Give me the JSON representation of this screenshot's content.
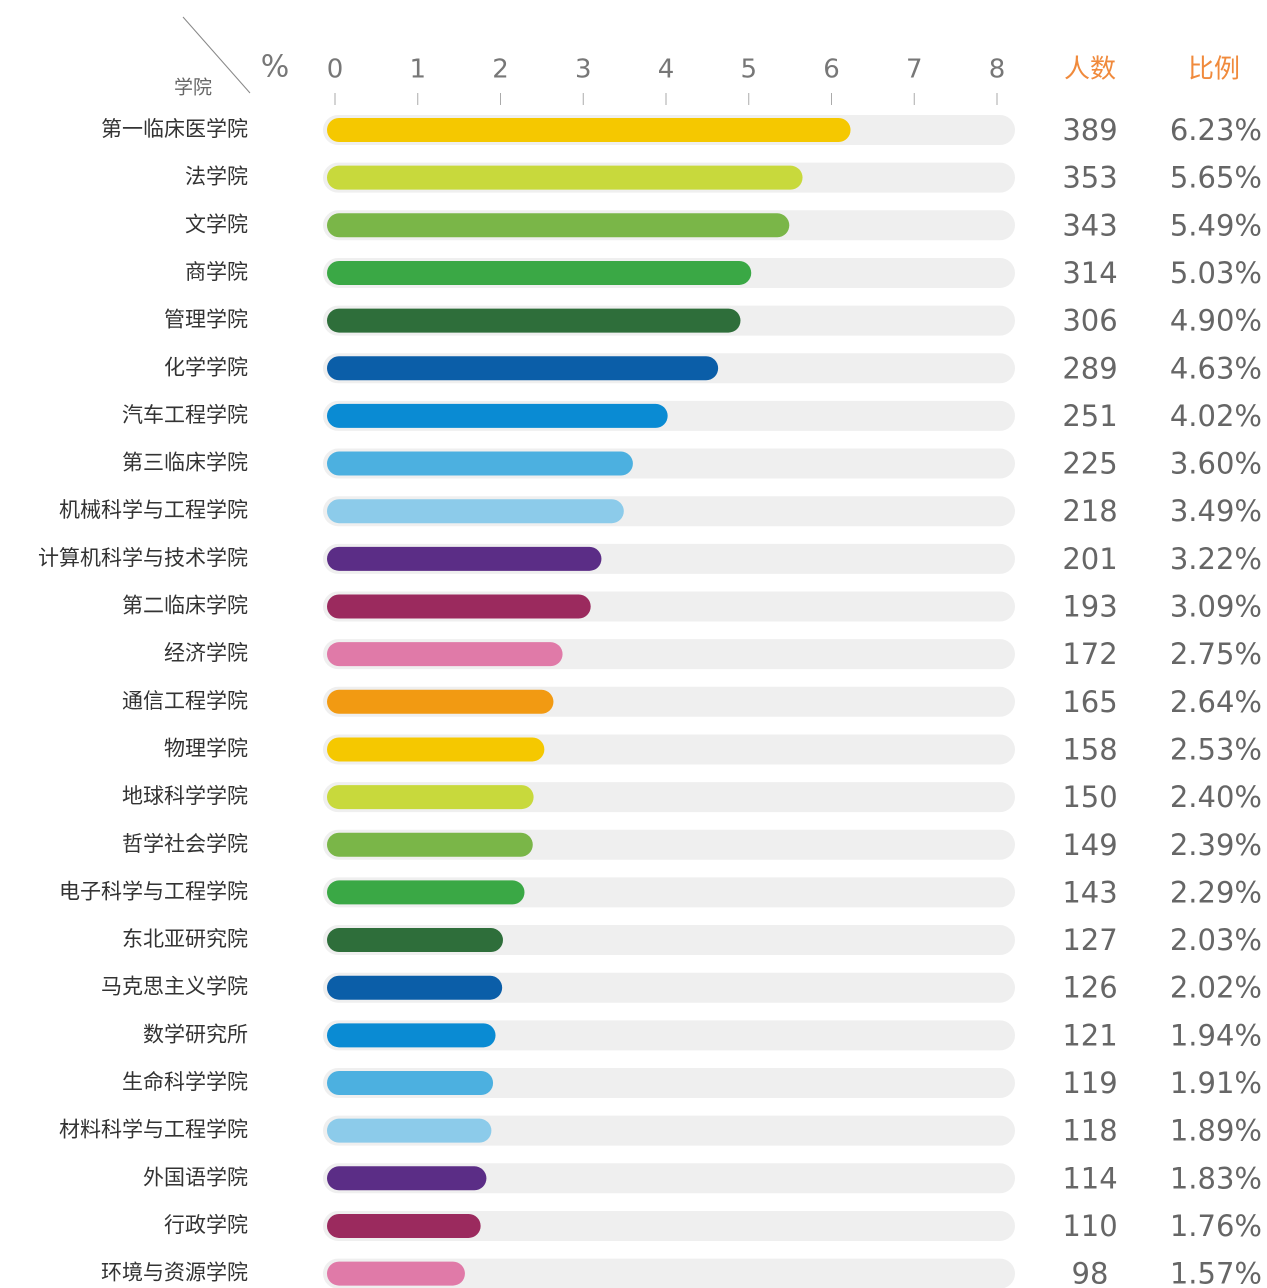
{
  "chart_data": {
    "type": "hbar",
    "corner_label": "学院",
    "axis_unit": "%",
    "count_header": "人数",
    "ratio_header": "比例",
    "categories": [
      "第一临床医学院",
      "法学院",
      "文学院",
      "商学院",
      "管理学院",
      "化学学院",
      "汽车工程学院",
      "第三临床学院",
      "机械科学与工程学院",
      "计算机科学与技术学院",
      "第二临床学院",
      "经济学院",
      "通信工程学院",
      "物理学院",
      "地球科学学院",
      "哲学社会学院",
      "电子科学与工程学院",
      "东北亚研究院",
      "马克思主义学院",
      "数学研究所",
      "生命科学学院",
      "材料科学与工程学院",
      "外国语学院",
      "行政学院",
      "环境与资源学院"
    ],
    "values": [
      6.23,
      5.65,
      5.49,
      5.03,
      4.9,
      4.63,
      4.02,
      3.6,
      3.49,
      3.22,
      3.09,
      2.75,
      2.64,
      2.53,
      2.4,
      2.39,
      2.29,
      2.03,
      2.02,
      1.94,
      1.91,
      1.89,
      1.83,
      1.76,
      1.57
    ],
    "value_labels": [
      "6.23%",
      "5.65%",
      "5.49%",
      "5.03%",
      "4.90%",
      "4.63%",
      "4.02%",
      "3.60%",
      "3.49%",
      "3.22%",
      "3.09%",
      "2.75%",
      "2.64%",
      "2.53%",
      "2.40%",
      "2.39%",
      "2.29%",
      "2.03%",
      "2.02%",
      "1.94%",
      "1.91%",
      "1.89%",
      "1.83%",
      "1.76%",
      "1.57%"
    ],
    "counts": [
      389,
      353,
      343,
      314,
      306,
      289,
      251,
      225,
      218,
      201,
      193,
      172,
      165,
      158,
      150,
      149,
      143,
      127,
      126,
      121,
      119,
      118,
      114,
      110,
      98
    ],
    "colors": [
      "#f5c800",
      "#c8d93c",
      "#7ab648",
      "#3aa845",
      "#2e6e3a",
      "#0b5ea8",
      "#0a8bd3",
      "#4cb0e0",
      "#8ccbea",
      "#5b2d86",
      "#9b2a5e",
      "#e07aa8",
      "#f29a12"
    ],
    "xlim": [
      0,
      8
    ],
    "xticks": [
      0,
      1,
      2,
      3,
      4,
      5,
      6,
      7,
      8
    ]
  }
}
